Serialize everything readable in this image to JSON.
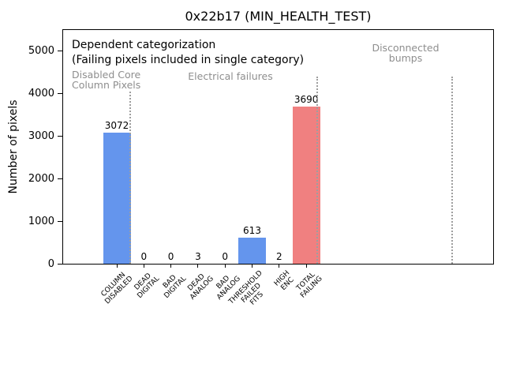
{
  "chart_data": {
    "type": "bar",
    "title": "0x22b17 (MIN_HEALTH_TEST)",
    "ylabel": "Number of pixels",
    "categories": [
      "COLUMN\nDISABLED",
      "DEAD\nDIGITAL",
      "BAD\nDIGITAL",
      "DEAD\nANALOG",
      "BAD\nANALOG",
      "THRESHOLD\nFAILED\nFITS",
      "HIGH\nENC",
      "TOTAL\nFAILING"
    ],
    "values": [
      3072,
      0,
      0,
      3,
      0,
      613,
      2,
      3690
    ],
    "value_labels": [
      "3072",
      "0",
      "0",
      "3",
      "0",
      "613",
      "2",
      "3690"
    ],
    "bar_colors": [
      "#6495ED",
      "#6495ED",
      "#6495ED",
      "#6495ED",
      "#6495ED",
      "#6495ED",
      "#6495ED",
      "#F08080"
    ],
    "yticks": [
      0,
      1000,
      2000,
      3000,
      4000,
      5000
    ],
    "ylim": [
      0,
      5500
    ],
    "grid": false,
    "legend": "none",
    "annotation": [
      "Dependent categorization",
      "(Failing pixels included in single category)"
    ],
    "sections": [
      {
        "label": "Disabled Core\nColumn Pixels"
      },
      {
        "label": "Electrical failures"
      },
      {
        "label": "Disconnected\nbumps"
      }
    ],
    "colors": {
      "section_label": "#8e8e8e",
      "divider": "#9e9e9e",
      "axis": "#000000",
      "blue_bar": "#6495ED",
      "red_bar": "#F08080"
    }
  }
}
